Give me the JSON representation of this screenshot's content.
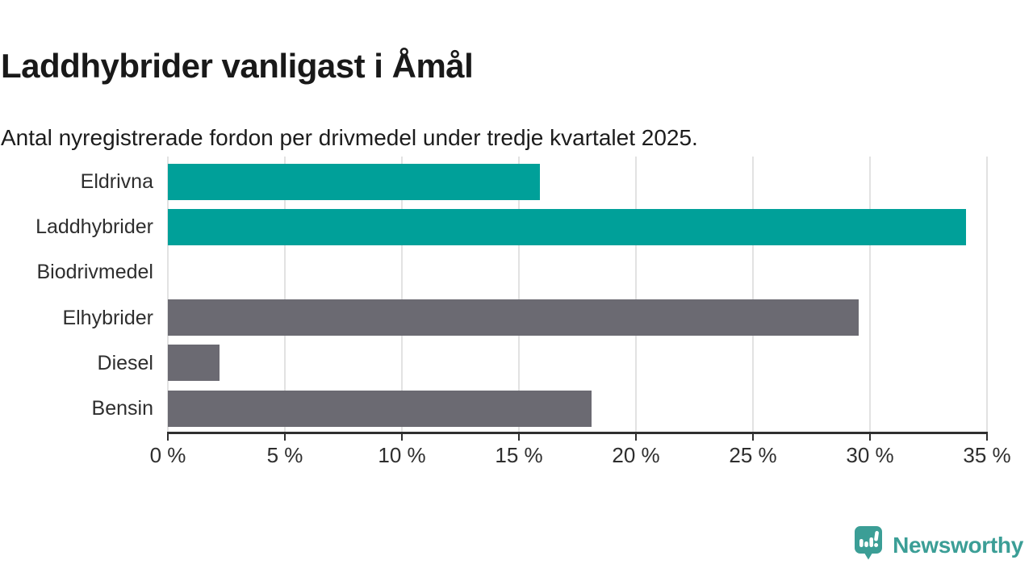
{
  "header": {
    "title": "Laddhybrider vanligast i Åmål",
    "subtitle": "Antal nyregistrerade fordon per drivmedel under tredje kvartalet 2025."
  },
  "chart_data": {
    "type": "bar",
    "orientation": "horizontal",
    "title": "Laddhybrider vanligast i Åmål",
    "subtitle": "Antal nyregistrerade fordon per drivmedel under tredje kvartalet 2025.",
    "categories": [
      "Eldrivna",
      "Laddhybrider",
      "Biodrivmedel",
      "Elhybrider",
      "Diesel",
      "Bensin"
    ],
    "values": [
      15.9,
      34.1,
      0,
      29.5,
      2.2,
      18.1
    ],
    "unit": "%",
    "xlim": [
      0,
      35
    ],
    "xticks": [
      0,
      5,
      10,
      15,
      20,
      25,
      30,
      35
    ],
    "xtick_labels": [
      "0 %",
      "5 %",
      "10 %",
      "15 %",
      "20 %",
      "25 %",
      "30 %",
      "35 %"
    ],
    "bar_colors": [
      "#00a099",
      "#00a099",
      "#6b6a72",
      "#6b6a72",
      "#6b6a72",
      "#6b6a72"
    ],
    "highlight_color": "#00a099",
    "neutral_color": "#6b6a72",
    "grid": true,
    "gridline_color": "#e2e2e2",
    "axis_color": "#2f2f2f",
    "legend": null,
    "xlabel": "",
    "ylabel": ""
  },
  "footer": {
    "brand": "Newsworthy",
    "brand_color": "#3b9e96",
    "logo_icon": "newsworthy-speech-bubble-chart-icon"
  },
  "colors": {
    "background": "#ffffff",
    "text": "#1d1d1d"
  }
}
